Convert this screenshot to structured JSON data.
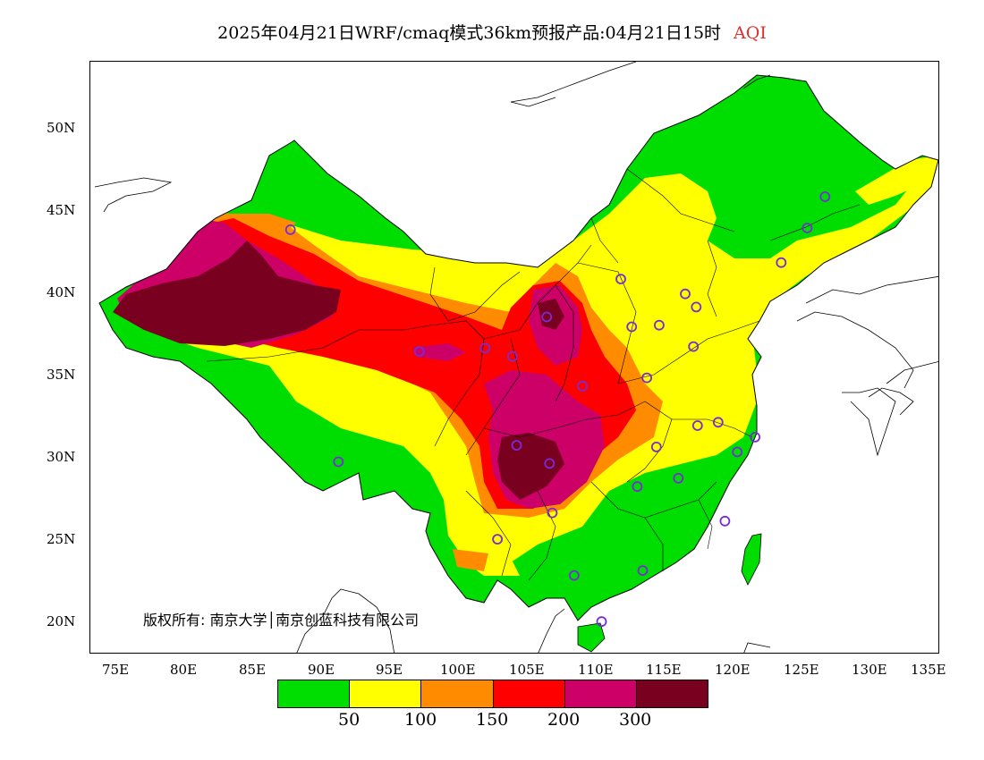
{
  "title": {
    "text": "2025年04月21日WRF/cmaq模式36km预报产品:04月21日15时",
    "variable": "AQI",
    "variable_color": "#e03030"
  },
  "axes": {
    "lat_labels": [
      "50N",
      "45N",
      "40N",
      "35N",
      "30N",
      "25N",
      "20N"
    ],
    "lon_labels": [
      "75E",
      "80E",
      "85E",
      "90E",
      "95E",
      "100E",
      "105E",
      "110E",
      "115E",
      "120E",
      "125E",
      "130E",
      "135E"
    ]
  },
  "copyright": "版权所有: 南京大学│南京创蓝科技有限公司",
  "legend": {
    "colors": [
      "#00dd00",
      "#ffff00",
      "#ff8c00",
      "#ff0000",
      "#cc0066",
      "#7a0020"
    ],
    "labels": [
      "50",
      "100",
      "150",
      "200",
      "300"
    ]
  },
  "stations": [
    {
      "lon": 87.6,
      "lat": 43.8
    },
    {
      "lon": 91.1,
      "lat": 29.7
    },
    {
      "lon": 101.8,
      "lat": 36.6
    },
    {
      "lon": 103.8,
      "lat": 36.1
    },
    {
      "lon": 106.3,
      "lat": 38.5
    },
    {
      "lon": 104.1,
      "lat": 30.7
    },
    {
      "lon": 106.5,
      "lat": 29.6
    },
    {
      "lon": 108.9,
      "lat": 34.3
    },
    {
      "lon": 112.5,
      "lat": 37.9
    },
    {
      "lon": 114.5,
      "lat": 38.0
    },
    {
      "lon": 116.4,
      "lat": 39.9
    },
    {
      "lon": 117.2,
      "lat": 39.1
    },
    {
      "lon": 117.0,
      "lat": 36.7
    },
    {
      "lon": 113.6,
      "lat": 34.8
    },
    {
      "lon": 114.3,
      "lat": 30.6
    },
    {
      "lon": 112.9,
      "lat": 28.2
    },
    {
      "lon": 115.9,
      "lat": 28.7
    },
    {
      "lon": 117.3,
      "lat": 31.9
    },
    {
      "lon": 118.8,
      "lat": 32.1
    },
    {
      "lon": 120.2,
      "lat": 30.3
    },
    {
      "lon": 121.5,
      "lat": 31.2
    },
    {
      "lon": 119.3,
      "lat": 26.1
    },
    {
      "lon": 113.3,
      "lat": 23.1
    },
    {
      "lon": 108.3,
      "lat": 22.8
    },
    {
      "lon": 110.3,
      "lat": 20.0
    },
    {
      "lon": 106.7,
      "lat": 26.6
    },
    {
      "lon": 102.7,
      "lat": 25.0
    },
    {
      "lon": 111.7,
      "lat": 40.8
    },
    {
      "lon": 123.4,
      "lat": 41.8
    },
    {
      "lon": 125.3,
      "lat": 43.9
    },
    {
      "lon": 126.6,
      "lat": 45.8
    },
    {
      "lon": 97.0,
      "lat": 36.4
    }
  ]
}
